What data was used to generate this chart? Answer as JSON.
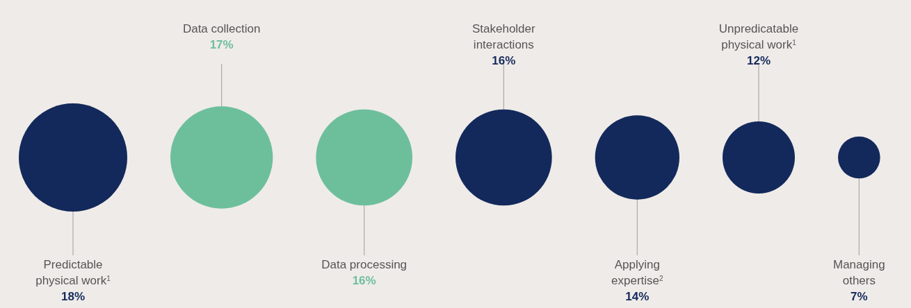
{
  "chart_data": {
    "type": "other",
    "categories": [
      "Predictable\nphysical work$^{1}$",
      "Data collection",
      "Data processing",
      "Stakeholder\ninteractions",
      "Applying\nexpertise$^{2}$",
      "Unpredicatable\nphysical work$^{1}$",
      "Managing\nothers"
    ],
    "values": [
      18,
      17,
      16,
      16,
      14,
      12,
      7
    ],
    "value_labels": [
      "18%",
      "17%",
      "16%",
      "16%",
      "14%",
      "12%",
      "7%"
    ],
    "colors": [
      "#13295b",
      "#6dbf9c",
      "#6dbf9c",
      "#13295b",
      "#13295b",
      "#13295b",
      "#13295b"
    ]
  }
}
